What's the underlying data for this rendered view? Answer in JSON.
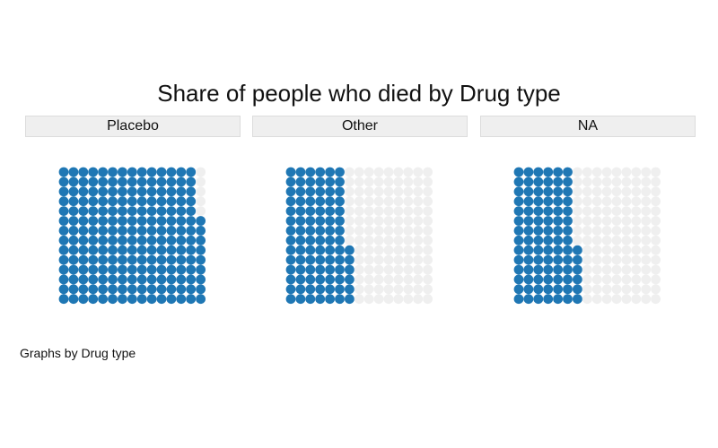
{
  "chart_data": {
    "type": "waffle",
    "title": "Share of people who died by Drug type",
    "note": "Graphs by Drug type",
    "grid": {
      "rows": 14,
      "cols": 15
    },
    "colors": {
      "filled": "#1f77b4",
      "empty": "#efefef"
    },
    "panels": [
      {
        "label": "Placebo",
        "filled_units": 205
      },
      {
        "label": "Other",
        "filled_units": 90
      },
      {
        "label": "NA",
        "filled_units": 90
      }
    ]
  }
}
